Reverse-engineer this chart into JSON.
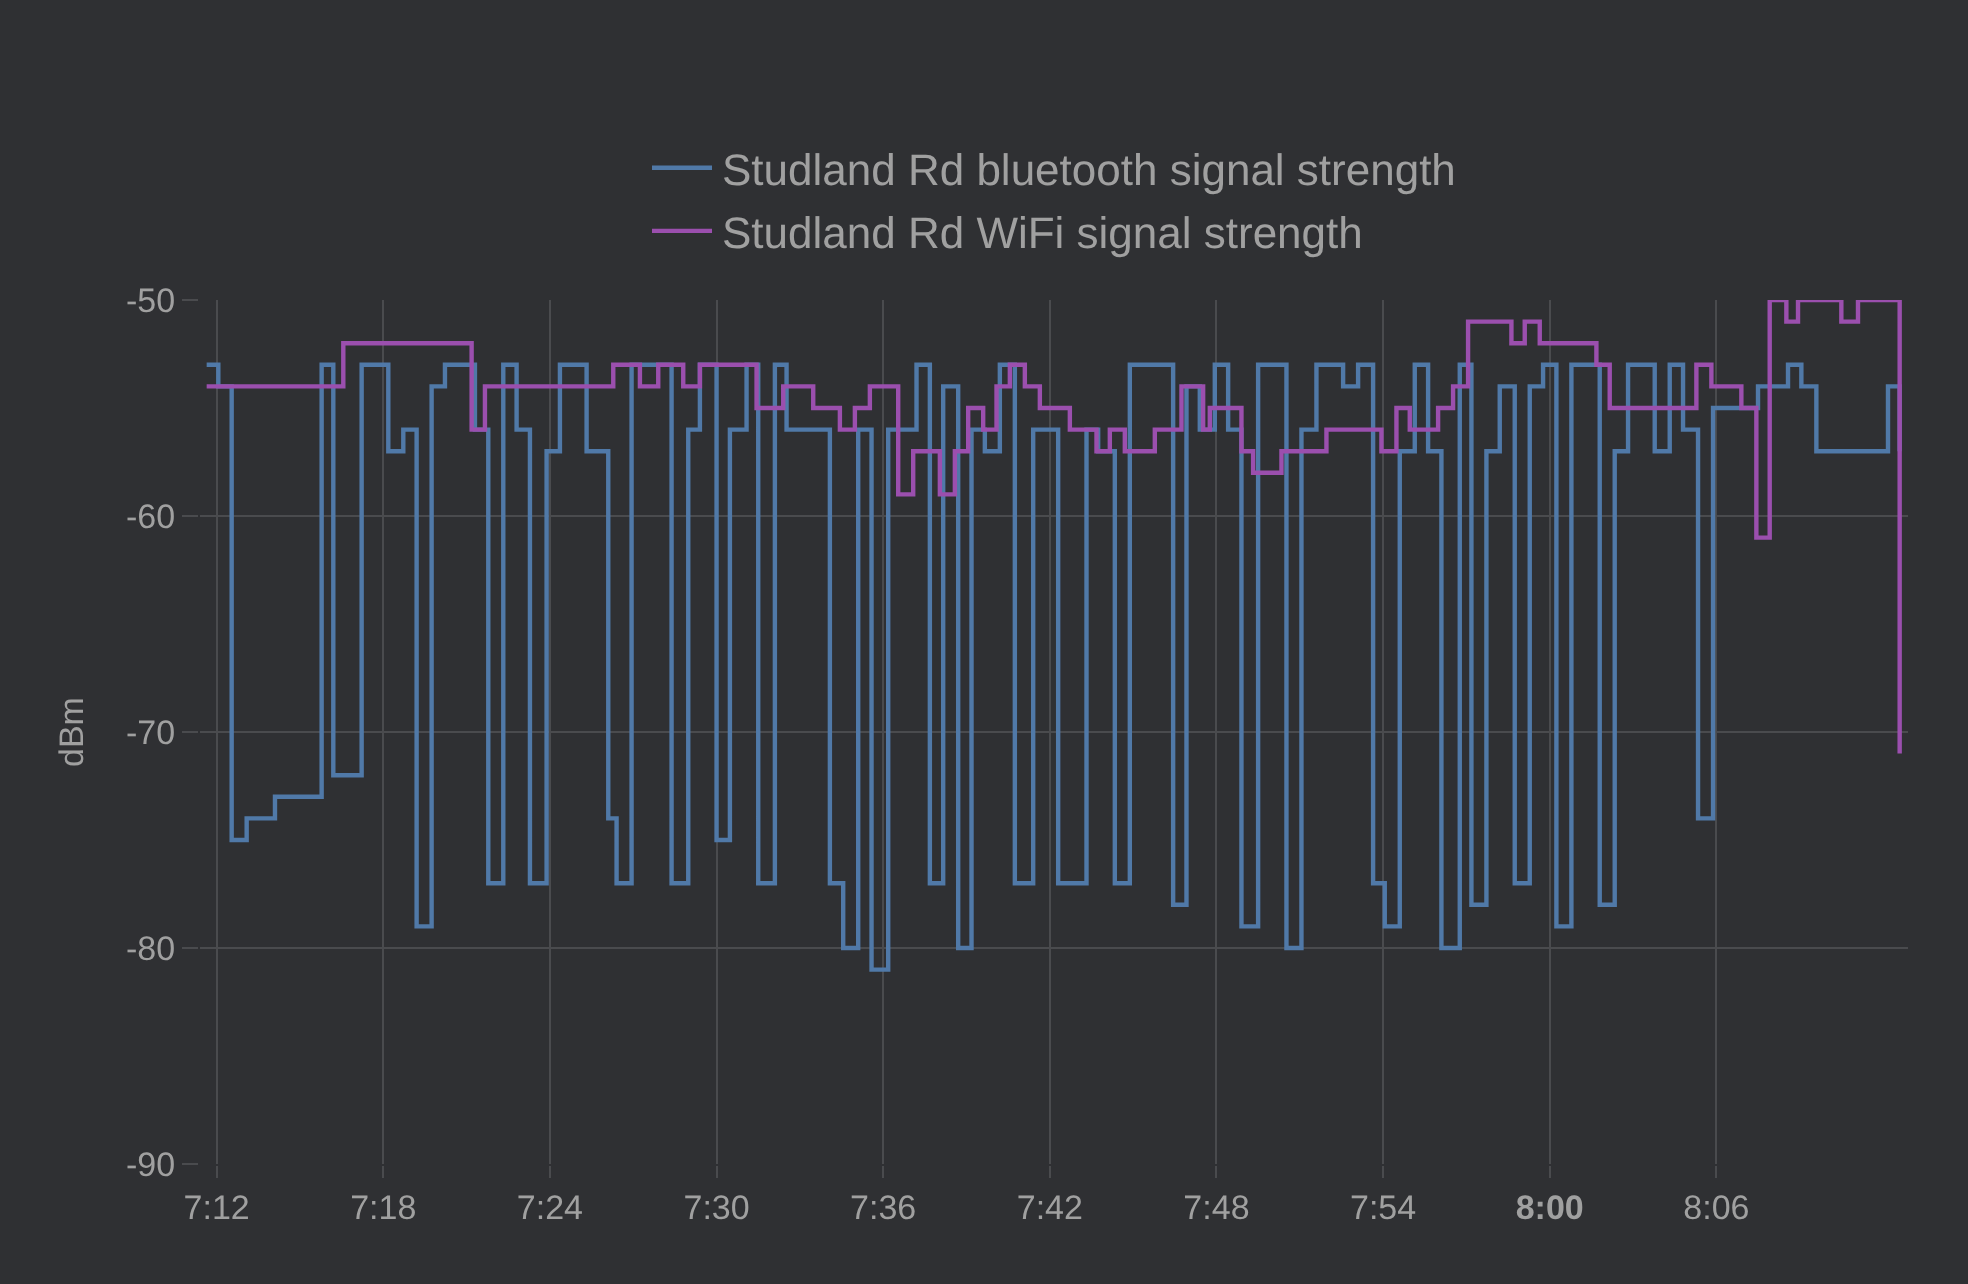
{
  "chart_data": {
    "type": "step",
    "ylabel": "dBm",
    "series": [
      {
        "name": "Studland Rd bluetooth signal strength",
        "color": "#5079a8",
        "x": [
          7.194,
          7.201,
          7.209,
          7.218,
          7.235,
          7.263,
          7.27,
          7.287,
          7.303,
          7.312,
          7.32,
          7.329,
          7.337,
          7.355,
          7.363,
          7.372,
          7.38,
          7.388,
          7.398,
          7.406,
          7.422,
          7.435,
          7.44,
          7.449,
          7.473,
          7.483,
          7.49,
          7.5,
          7.508,
          7.518,
          7.525,
          7.535,
          7.542,
          7.568,
          7.576,
          7.585,
          7.593,
          7.603,
          7.62,
          7.628,
          7.636,
          7.645,
          7.653,
          7.661,
          7.67,
          7.679,
          7.69,
          7.705,
          7.722,
          7.729,
          7.739,
          7.748,
          7.774,
          7.782,
          7.79,
          7.799,
          7.807,
          7.815,
          7.825,
          7.842,
          7.851,
          7.86,
          7.876,
          7.885,
          7.894,
          7.901,
          7.91,
          7.919,
          7.927,
          7.935,
          7.946,
          7.953,
          7.962,
          7.97,
          7.979,
          7.988,
          7.996,
          8.004,
          8.013,
          8.03,
          8.039,
          8.047,
          8.063,
          8.072,
          8.08,
          8.089,
          8.098,
          8.125,
          8.143,
          8.151,
          8.16,
          8.203,
          8.21
        ],
        "values": [
          -53,
          -54,
          -75,
          -74,
          -73,
          -53,
          -72,
          -53,
          -57,
          -56,
          -79,
          -54,
          -53,
          -56,
          -77,
          -53,
          -56,
          -77,
          -57,
          -53,
          -57,
          -74,
          -77,
          -53,
          -77,
          -56,
          -53,
          -75,
          -56,
          -53,
          -77,
          -53,
          -56,
          -77,
          -80,
          -56,
          -81,
          -56,
          -53,
          -77,
          -54,
          -80,
          -56,
          -57,
          -53,
          -77,
          -56,
          -77,
          -56,
          -57,
          -77,
          -53,
          -78,
          -54,
          -56,
          -53,
          -56,
          -79,
          -53,
          -80,
          -56,
          -53,
          -54,
          -53,
          -77,
          -79,
          -57,
          -53,
          -57,
          -80,
          -53,
          -78,
          -57,
          -54,
          -77,
          -54,
          -53,
          -79,
          -53,
          -78,
          -57,
          -53,
          -57,
          -53,
          -56,
          -74,
          -55,
          -54,
          -53,
          -54,
          -57,
          -54,
          -57
        ]
      },
      {
        "name": "Studland Rd WiFi signal strength",
        "color": "#9b4fae",
        "x": [
          7.194,
          7.276,
          7.353,
          7.361,
          7.438,
          7.454,
          7.465,
          7.48,
          7.49,
          7.524,
          7.54,
          7.558,
          7.574,
          7.583,
          7.592,
          7.609,
          7.618,
          7.634,
          7.643,
          7.651,
          7.66,
          7.668,
          7.676,
          7.685,
          7.694,
          7.712,
          7.728,
          7.736,
          7.745,
          7.763,
          7.779,
          7.792,
          7.796,
          7.815,
          7.822,
          7.839,
          7.866,
          7.899,
          7.908,
          7.916,
          7.933,
          7.942,
          7.951,
          7.977,
          7.985,
          7.994,
          8.028,
          8.036,
          8.088,
          8.097,
          8.115,
          8.124,
          8.132,
          8.142,
          8.149,
          8.175,
          8.185,
          8.21
        ],
        "values": [
          -54,
          -52,
          -56,
          -54,
          -53,
          -54,
          -53,
          -54,
          -53,
          -55,
          -54,
          -55,
          -56,
          -55,
          -54,
          -59,
          -57,
          -59,
          -57,
          -55,
          -56,
          -54,
          -53,
          -54,
          -55,
          -56,
          -57,
          -56,
          -57,
          -56,
          -54,
          -56,
          -55,
          -57,
          -58,
          -57,
          -56,
          -57,
          -55,
          -56,
          -55,
          -54,
          -51,
          -52,
          -51,
          -52,
          -53,
          -55,
          -53,
          -54,
          -55,
          -61,
          -50,
          -51,
          -50,
          -51,
          -50,
          -71
        ]
      }
    ],
    "xlim": [
      7.19,
      8.215
    ],
    "xticks": [
      {
        "value": 7.2,
        "label": "7:12"
      },
      {
        "value": 7.3,
        "label": "7:18"
      },
      {
        "value": 7.4,
        "label": "7:24"
      },
      {
        "value": 7.5,
        "label": "7:30"
      },
      {
        "value": 7.6,
        "label": "7:36"
      },
      {
        "value": 7.7,
        "label": "7:42"
      },
      {
        "value": 7.8,
        "label": "7:48"
      },
      {
        "value": 7.9,
        "label": "7:54"
      },
      {
        "value": 8.0,
        "label": "8:00"
      },
      {
        "value": 8.1,
        "label": "8:06"
      }
    ],
    "ylim": [
      -90,
      -50
    ],
    "yticks": [
      -90,
      -80,
      -70,
      -60,
      -50
    ],
    "grid": true,
    "legend": "top",
    "marker": "none",
    "line_style": "solid"
  }
}
